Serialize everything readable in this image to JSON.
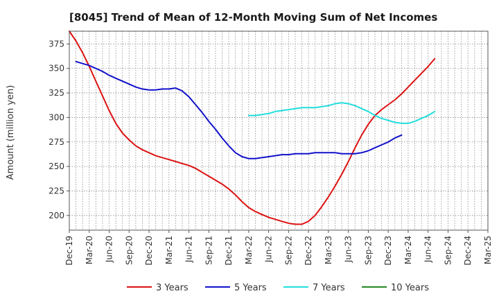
{
  "chart_data": {
    "type": "line",
    "title": "[8045]  Trend of Mean of 12-Month Moving Sum of Net Incomes",
    "xlabel": "",
    "ylabel": "Amount (million yen)",
    "ylim": [
      185,
      388
    ],
    "yticks": [
      200,
      225,
      250,
      275,
      300,
      325,
      350,
      375
    ],
    "x_tick_labels": [
      "Dec-19",
      "Mar-20",
      "Jun-20",
      "Sep-20",
      "Dec-20",
      "Mar-21",
      "Jun-21",
      "Sep-21",
      "Dec-21",
      "Mar-22",
      "Jun-22",
      "Sep-22",
      "Dec-22",
      "Mar-23",
      "Jun-23",
      "Sep-23",
      "Dec-23",
      "Mar-24",
      "Jun-24",
      "Sep-24",
      "Dec-24",
      "Mar-25"
    ],
    "grid": true,
    "legend_position": "bottom",
    "series": [
      {
        "name": "3 Years",
        "color": "#dd1111",
        "start_month": 0,
        "values": [
          388,
          378,
          366,
          352,
          337,
          322,
          307,
          294,
          284,
          277,
          271,
          267,
          264,
          261,
          259,
          257,
          255,
          253,
          251,
          248,
          244,
          240,
          236,
          232,
          227,
          221,
          214,
          208,
          204,
          201,
          198,
          196,
          194,
          192,
          191,
          191,
          194,
          200,
          209,
          219,
          230,
          242,
          255,
          269,
          282,
          293,
          302,
          308,
          313,
          318,
          324,
          331,
          338,
          345,
          352,
          360
        ]
      },
      {
        "name": "5 Years",
        "color": "#1111cc",
        "start_month": 1,
        "values": [
          357,
          355,
          353,
          350,
          347,
          343,
          340,
          337,
          334,
          331,
          329,
          328,
          328,
          329,
          329,
          330,
          327,
          321,
          313,
          305,
          296,
          288,
          279,
          271,
          264,
          260,
          258,
          258,
          259,
          260,
          261,
          262,
          262,
          263,
          263,
          263,
          264,
          264,
          264,
          264,
          263,
          263,
          263,
          264,
          266,
          269,
          272,
          275,
          279,
          282
        ]
      },
      {
        "name": "7 Years",
        "color": "#22dddd",
        "start_month": 27,
        "values": [
          302,
          302,
          303,
          304,
          306,
          307,
          308,
          309,
          310,
          310,
          310,
          311,
          312,
          314,
          315,
          314,
          312,
          309,
          306,
          302,
          299,
          297,
          295,
          294,
          294,
          296,
          299,
          302,
          306
        ]
      },
      {
        "name": "10 Years",
        "color": "#228822",
        "start_month": 0,
        "values": []
      }
    ]
  }
}
